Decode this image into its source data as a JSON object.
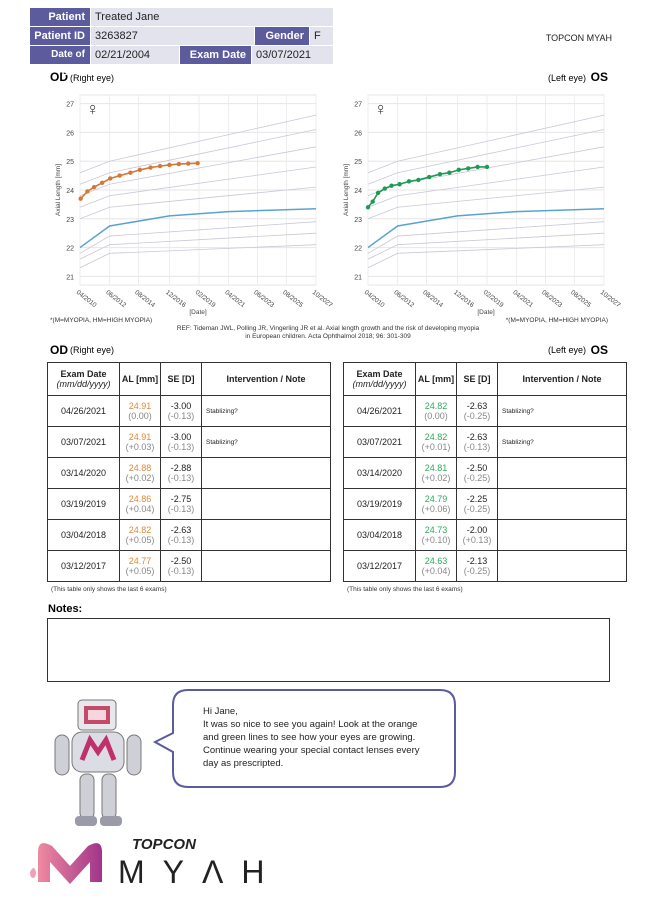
{
  "header": {
    "patient_label": "Patient",
    "patient": "Treated  Jane",
    "id_label": "Patient ID",
    "id": "3263827",
    "gender_label": "Gender",
    "gender": "F",
    "dob_label": "Date of Birth",
    "dob": "02/21/2004",
    "exam_label": "Exam Date",
    "exam": "03/07/2021",
    "brand": "TOPCON MYAH"
  },
  "chart_data": [
    {
      "type": "line",
      "title": "OD",
      "subtitle": "(Right eye)",
      "symbol": "♀",
      "y_label": "Axial Length [mm]",
      "x_label": "[Date]",
      "footnote": "*(M=MYOPIA, HM=HIGH MYOPIA)",
      "xlim": [
        2010.25,
        2027.8
      ],
      "ylim": [
        20.7,
        27.3
      ],
      "yticks": [
        21,
        22,
        23,
        24,
        25,
        26,
        27
      ],
      "grid": true,
      "xticks": [
        {
          "value": 2010.25,
          "label": "04/2010"
        },
        {
          "value": 2012.45,
          "label": "06/2012"
        },
        {
          "value": 2014.6,
          "label": "08/2014"
        },
        {
          "value": 2016.9,
          "label": "12/2016"
        },
        {
          "value": 2019.1,
          "label": "02/2019"
        },
        {
          "value": 2021.3,
          "label": "04/2021"
        },
        {
          "value": 2023.45,
          "label": "06/2023"
        },
        {
          "value": 2025.6,
          "label": "08/2025"
        },
        {
          "value": 2027.8,
          "label": "10/2027"
        }
      ],
      "series": [
        {
          "color": "#c8c8d8",
          "x": [
            2010.25,
            2012.45,
            2027.8
          ],
          "values": [
            24.6,
            25.0,
            26.6
          ]
        },
        {
          "color": "#c8c8d8",
          "x": [
            2010.25,
            2012.45,
            2027.8
          ],
          "values": [
            24.2,
            24.6,
            26.1
          ]
        },
        {
          "color": "#c8c8d8",
          "x": [
            2010.25,
            2012.45,
            2027.8
          ],
          "values": [
            23.8,
            24.2,
            25.5
          ]
        },
        {
          "color": "#c8c8d8",
          "x": [
            2010.25,
            2012.45,
            2027.8
          ],
          "values": [
            23.4,
            23.8,
            24.8
          ]
        },
        {
          "color": "#c8c8d8",
          "x": [
            2010.25,
            2012.45,
            2027.8
          ],
          "values": [
            23.0,
            23.4,
            24.1
          ]
        },
        {
          "color": "#c8c8d8",
          "x": [
            2010.25,
            2012.45,
            2027.8
          ],
          "values": [
            21.8,
            22.4,
            22.9
          ]
        },
        {
          "color": "#c8c8d8",
          "x": [
            2010.25,
            2012.45,
            2027.8
          ],
          "values": [
            21.6,
            22.1,
            22.5
          ]
        },
        {
          "color": "#c8c8d8",
          "x": [
            2010.25,
            2012.45,
            2027.8
          ],
          "values": [
            21.3,
            21.8,
            22.1
          ]
        },
        {
          "color": "#5aa3d0",
          "x": [
            2010.25,
            2012.45,
            2016.9,
            2021.3,
            2027.8
          ],
          "values": [
            22.0,
            22.75,
            23.1,
            23.25,
            23.35
          ]
        },
        {
          "color": "#d2793a",
          "markers": true,
          "x": [
            2010.3,
            2010.8,
            2011.3,
            2011.9,
            2012.5,
            2013.2,
            2014.0,
            2014.7,
            2015.5,
            2016.2,
            2016.9,
            2017.6,
            2018.3,
            2019.0
          ],
          "values": [
            23.7,
            23.95,
            24.1,
            24.25,
            24.4,
            24.5,
            24.6,
            24.7,
            24.78,
            24.83,
            24.87,
            24.9,
            24.92,
            24.93
          ]
        }
      ]
    },
    {
      "type": "line",
      "title": "OS",
      "subtitle": "(Left eye)",
      "symbol": "♀",
      "y_label": "Axial Length [mm]",
      "x_label": "[Date]",
      "footnote": "*(M=MYOPIA, HM=HIGH MYOPIA)",
      "xlim": [
        2010.25,
        2027.8
      ],
      "ylim": [
        20.7,
        27.3
      ],
      "yticks": [
        21,
        22,
        23,
        24,
        25,
        26,
        27
      ],
      "grid": true,
      "xticks": [
        {
          "value": 2010.25,
          "label": "04/2010"
        },
        {
          "value": 2012.45,
          "label": "06/2012"
        },
        {
          "value": 2014.6,
          "label": "08/2014"
        },
        {
          "value": 2016.9,
          "label": "12/2016"
        },
        {
          "value": 2019.1,
          "label": "02/2019"
        },
        {
          "value": 2021.3,
          "label": "04/2021"
        },
        {
          "value": 2023.45,
          "label": "06/2023"
        },
        {
          "value": 2025.6,
          "label": "08/2025"
        },
        {
          "value": 2027.8,
          "label": "10/2027"
        }
      ],
      "series": [
        {
          "color": "#c8c8d8",
          "x": [
            2010.25,
            2012.45,
            2027.8
          ],
          "values": [
            24.6,
            25.0,
            26.6
          ]
        },
        {
          "color": "#c8c8d8",
          "x": [
            2010.25,
            2012.45,
            2027.8
          ],
          "values": [
            24.2,
            24.6,
            26.1
          ]
        },
        {
          "color": "#c8c8d8",
          "x": [
            2010.25,
            2012.45,
            2027.8
          ],
          "values": [
            23.8,
            24.2,
            25.5
          ]
        },
        {
          "color": "#c8c8d8",
          "x": [
            2010.25,
            2012.45,
            2027.8
          ],
          "values": [
            23.4,
            23.8,
            24.8
          ]
        },
        {
          "color": "#c8c8d8",
          "x": [
            2010.25,
            2012.45,
            2027.8
          ],
          "values": [
            23.0,
            23.4,
            24.1
          ]
        },
        {
          "color": "#c8c8d8",
          "x": [
            2010.25,
            2012.45,
            2027.8
          ],
          "values": [
            21.8,
            22.4,
            22.9
          ]
        },
        {
          "color": "#c8c8d8",
          "x": [
            2010.25,
            2012.45,
            2027.8
          ],
          "values": [
            21.6,
            22.1,
            22.5
          ]
        },
        {
          "color": "#c8c8d8",
          "x": [
            2010.25,
            2012.45,
            2027.8
          ],
          "values": [
            21.3,
            21.8,
            22.1
          ]
        },
        {
          "color": "#5aa3d0",
          "x": [
            2010.25,
            2012.45,
            2016.9,
            2021.3,
            2027.8
          ],
          "values": [
            22.0,
            22.75,
            23.1,
            23.25,
            23.35
          ]
        },
        {
          "color": "#1e9a55",
          "markers": true,
          "x": [
            2010.25,
            2010.6,
            2011.0,
            2011.5,
            2012.0,
            2012.6,
            2013.3,
            2014.0,
            2014.8,
            2015.6,
            2016.3,
            2017.0,
            2017.7,
            2018.4,
            2019.1
          ],
          "values": [
            23.4,
            23.6,
            23.9,
            24.05,
            24.15,
            24.2,
            24.3,
            24.35,
            24.45,
            24.55,
            24.6,
            24.7,
            24.75,
            24.8,
            24.8
          ]
        }
      ]
    }
  ],
  "reference": [
    "REF: Tideman JWL, Polling JR, Vingerling JR et al. Axial length growth and the risk of developing myopia",
    "in European children. Acta Ophthalmol 2018; 96: 301-309"
  ],
  "tables": [
    {
      "title": "OD",
      "subtitle": "(Right eye)",
      "al_color": "#e0893a",
      "columns": [
        "Exam Date",
        "(mm/dd/yyyy)",
        "AL [mm]",
        "SE [D]",
        "Intervention / Note"
      ],
      "rows": [
        [
          "04/26/2021",
          "24.91",
          "(0.00)",
          "-3.00",
          "(-0.13)",
          "Stablizing?"
        ],
        [
          "03/07/2021",
          "24.91",
          "(+0.03)",
          "-3.00",
          "(-0.13)",
          "Stablizing?"
        ],
        [
          "03/14/2020",
          "24.88",
          "(+0.02)",
          "-2.88",
          "(-0.13)"
        ],
        [
          "03/19/2019",
          "24.86",
          "(+0.04)",
          "-2.75",
          "(-0.13)"
        ],
        [
          "03/04/2018",
          "24.82",
          "(+0.05)",
          "-2.63",
          "(-0.13)"
        ],
        [
          "03/12/2017",
          "24.77",
          "(+0.05)",
          "-2.50",
          "(-0.13)"
        ]
      ],
      "footnote": "(This table only shows the last 6 exams)"
    },
    {
      "title": "OS",
      "subtitle": "(Left eye)",
      "al_color": "#2eaa5a",
      "columns": [
        "Exam Date",
        "(mm/dd/yyyy)",
        "AL [mm]",
        "SE [D]",
        "Intervention / Note"
      ],
      "rows": [
        [
          "04/26/2021",
          "24.82",
          "(0.00)",
          "-2.63",
          "(-0.25)",
          "Stablizing?"
        ],
        [
          "03/07/2021",
          "24.82",
          "(+0.01)",
          "-2.63",
          "(-0.13)",
          "Stablizing?"
        ],
        [
          "03/14/2020",
          "24.81",
          "(+0.02)",
          "-2.50",
          "(-0.25)"
        ],
        [
          "03/19/2019",
          "24.79",
          "(+0.06)",
          "-2.25",
          "(-0.25)"
        ],
        [
          "03/04/2018",
          "24.73",
          "(+0.10)",
          "-2.00",
          "(+0.13)"
        ],
        [
          "03/12/2017",
          "24.63",
          "(+0.04)",
          "-2.13",
          "(-0.25)"
        ]
      ],
      "footnote": "(This table only shows the last 6 exams)"
    }
  ],
  "notes_label": "Notes:",
  "message": [
    "Hi Jane,",
    "It was so nice to see you again! Look at the orange",
    "and green lines to see how your eyes are growing.",
    "Continue wearing your special contact lenses every",
    "day as prescripted."
  ],
  "logo": {
    "company": "TOPCON",
    "product": "MYΛH"
  }
}
